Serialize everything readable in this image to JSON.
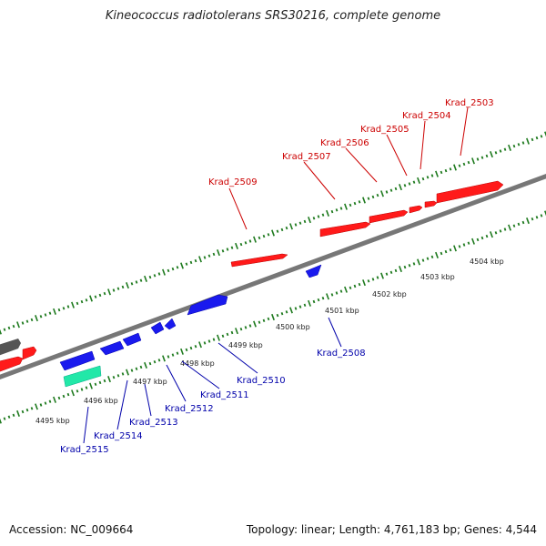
{
  "title": "Kineococcus radiotolerans SRS30216, complete genome",
  "footer": {
    "accession": "Accession: NC_009664",
    "summary": "Topology: linear; Length: 4,761,183 bp; Genes: 4,544"
  },
  "colors": {
    "forward_gene": "#ff1a1a",
    "reverse_gene": "#1a1aee",
    "rna_gene": "#22e8a8",
    "other_gene": "#555555",
    "backbone": "#777777",
    "ticks": "#1e7a1e",
    "forward_label": "#cc0000",
    "reverse_label": "#0000aa"
  },
  "scale_labels": [
    "4495 kbp",
    "4496 kbp",
    "4497 kbp",
    "4498 kbp",
    "4499 kbp",
    "4500 kbp",
    "4501 kbp",
    "4502 kbp",
    "4503 kbp",
    "4504 kbp"
  ],
  "forward_genes": [
    "Krad_2509",
    "Krad_2507",
    "Krad_2506",
    "Krad_2505",
    "Krad_2504",
    "Krad_2503"
  ],
  "reverse_genes": [
    "Krad_2508",
    "Krad_2510",
    "Krad_2511",
    "Krad_2512",
    "Krad_2513",
    "Krad_2514",
    "Krad_2515"
  ]
}
